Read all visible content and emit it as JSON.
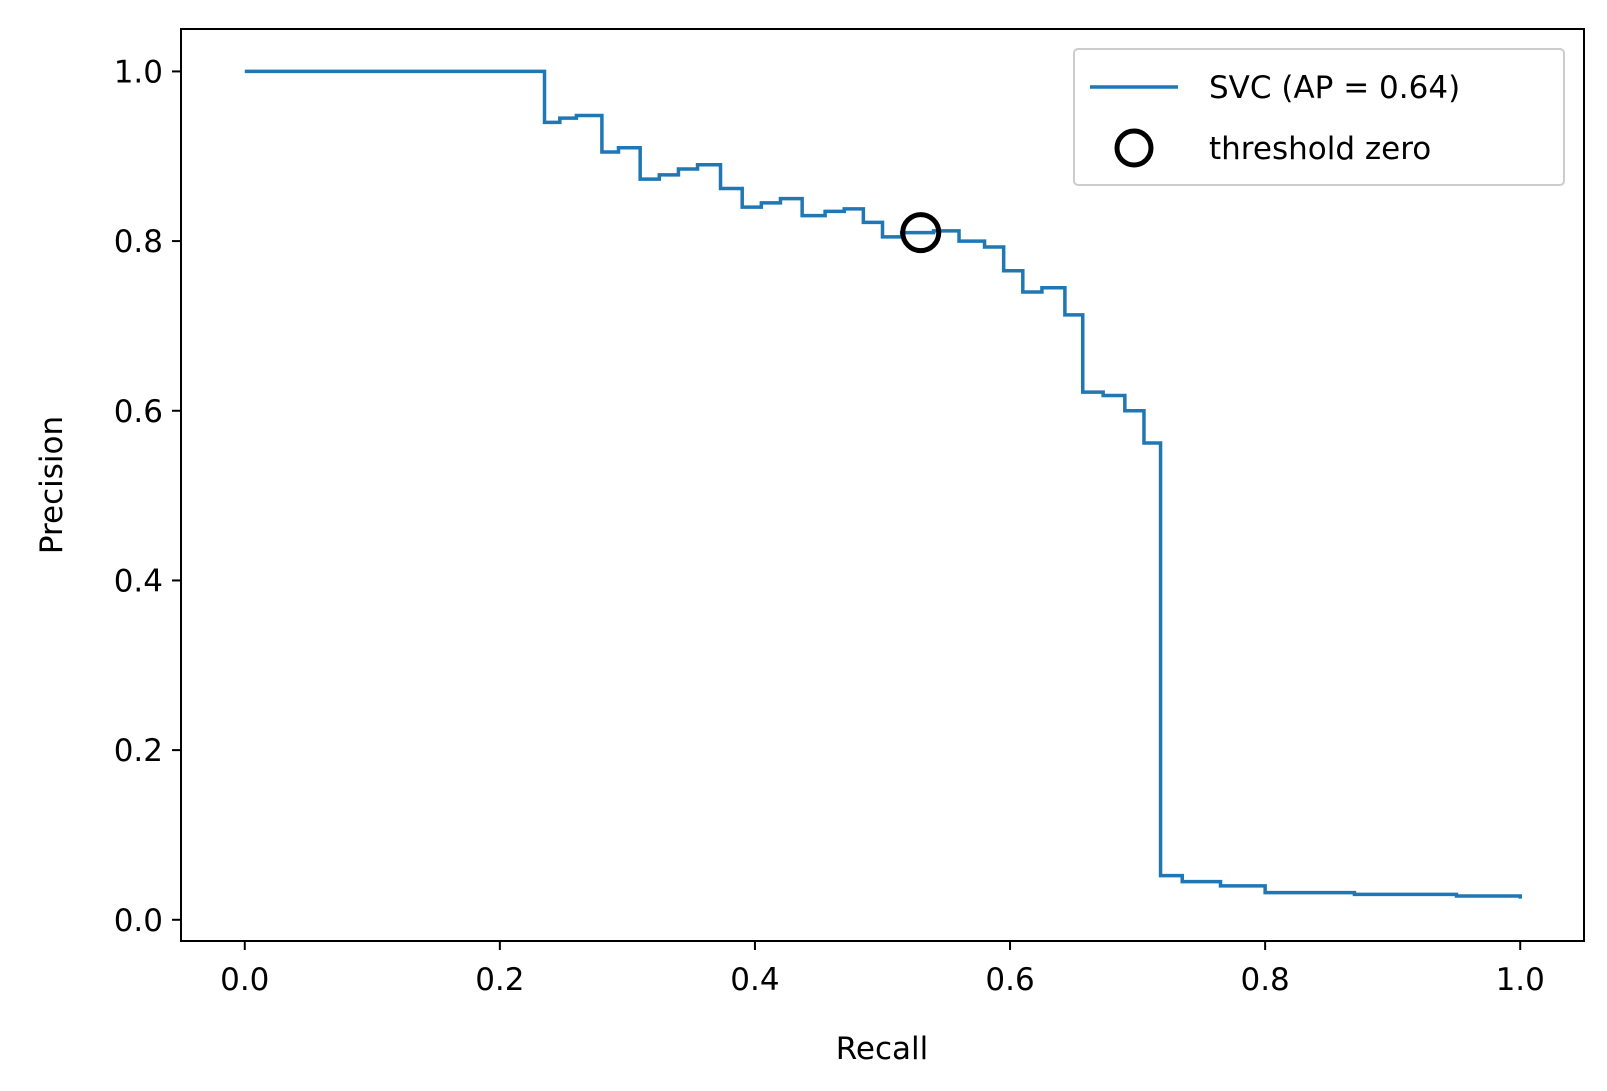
{
  "chart_data": {
    "type": "line",
    "title": "",
    "xlabel": "Recall",
    "ylabel": "Precision",
    "xlim": [
      -0.05,
      1.05
    ],
    "ylim": [
      -0.025,
      1.05
    ],
    "xticks": [
      "0.0",
      "0.2",
      "0.4",
      "0.6",
      "0.8",
      "1.0"
    ],
    "yticks": [
      "0.0",
      "0.2",
      "0.4",
      "0.6",
      "0.8",
      "1.0"
    ],
    "grid": false,
    "legend_position": "top-right",
    "colors": {
      "series": "#1f77b4",
      "marker": "#000000"
    },
    "series": [
      {
        "name": "SVC (AP = 0.64)",
        "style": "step-post",
        "x": [
          0.0,
          0.235,
          0.235,
          0.247,
          0.26,
          0.28,
          0.293,
          0.31,
          0.325,
          0.34,
          0.355,
          0.373,
          0.39,
          0.405,
          0.42,
          0.437,
          0.455,
          0.47,
          0.485,
          0.5,
          0.515,
          0.54,
          0.56,
          0.58,
          0.595,
          0.61,
          0.625,
          0.643,
          0.657,
          0.673,
          0.69,
          0.705,
          0.718,
          0.735,
          0.765,
          0.8,
          0.87,
          0.95,
          1.0
        ],
        "y": [
          1.0,
          1.0,
          0.94,
          0.945,
          0.948,
          0.905,
          0.91,
          0.873,
          0.878,
          0.885,
          0.89,
          0.862,
          0.84,
          0.845,
          0.85,
          0.83,
          0.835,
          0.838,
          0.822,
          0.805,
          0.81,
          0.812,
          0.8,
          0.793,
          0.765,
          0.74,
          0.745,
          0.713,
          0.622,
          0.618,
          0.6,
          0.562,
          0.052,
          0.045,
          0.04,
          0.032,
          0.03,
          0.028,
          0.025
        ]
      },
      {
        "name": "threshold zero",
        "style": "marker-circle",
        "x": [
          0.53
        ],
        "y": [
          0.81
        ]
      }
    ]
  }
}
